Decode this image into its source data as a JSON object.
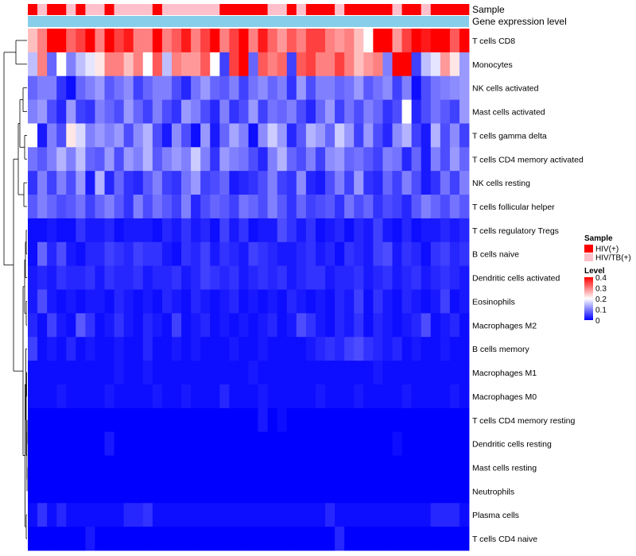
{
  "chart_data": {
    "type": "heatmap",
    "annotation_labels": {
      "sample": "Sample",
      "gene": "Gene expression level"
    },
    "rows": [
      "T cells CD8",
      "Monocytes",
      "NK cells activated",
      "Mast cells activated",
      "T cells gamma delta",
      "T cells CD4 memory activated",
      "NK cells resting",
      "T cells follicular helper",
      "T cells regulatory  Tregs",
      "B cells naive",
      "Dendritic cells activated",
      "Eosinophils",
      "Macrophages M2",
      "B cells memory",
      "Macrophages M1",
      "Macrophages M0",
      "T cells CD4 memory resting",
      "Dendritic cells resting",
      "Mast cells resting",
      "Neutrophils",
      "Plasma cells",
      "T cells CD4 naive"
    ],
    "n_columns": 46,
    "sample_groups": [
      "HIV(+)",
      "HIV/TB(+)",
      "HIV(+)",
      "HIV(+)",
      "HIV/TB(+)",
      "HIV(+)",
      "HIV/TB(+)",
      "HIV/TB(+)",
      "HIV(+)",
      "HIV/TB(+)",
      "HIV/TB(+)",
      "HIV/TB(+)",
      "HIV/TB(+)",
      "HIV(+)",
      "HIV/TB(+)",
      "HIV/TB(+)",
      "HIV/TB(+)",
      "HIV/TB(+)",
      "HIV/TB(+)",
      "HIV/TB(+)",
      "HIV(+)",
      "HIV(+)",
      "HIV(+)",
      "HIV(+)",
      "HIV(+)",
      "HIV/TB(+)",
      "HIV/TB(+)",
      "HIV(+)",
      "HIV/TB(+)",
      "HIV(+)",
      "HIV(+)",
      "HIV(+)",
      "HIV/TB(+)",
      "HIV(+)",
      "HIV(+)",
      "HIV(+)",
      "HIV(+)",
      "HIV(+)",
      "HIV/TB(+)",
      "HIV(+)",
      "HIV(+)",
      "HIV/TB(+)",
      "HIV(+)",
      "HIV(+)",
      "HIV(+)",
      "HIV(+)"
    ],
    "values": [
      [
        0.25,
        0.3,
        0.4,
        0.4,
        0.32,
        0.35,
        0.4,
        0.3,
        0.4,
        0.35,
        0.38,
        0.3,
        0.3,
        0.4,
        0.3,
        0.33,
        0.38,
        0.3,
        0.35,
        0.4,
        0.3,
        0.35,
        0.4,
        0.3,
        0.38,
        0.32,
        0.28,
        0.33,
        0.3,
        0.35,
        0.35,
        0.3,
        0.28,
        0.3,
        0.25,
        0.2,
        0.4,
        0.4,
        0.28,
        0.35,
        0.4,
        0.38,
        0.4,
        0.4,
        0.33,
        0.4
      ],
      [
        0.15,
        0.3,
        0.08,
        0.2,
        0.1,
        0.15,
        0.18,
        0.22,
        0.3,
        0.3,
        0.25,
        0.3,
        0.2,
        0.33,
        0.15,
        0.3,
        0.28,
        0.28,
        0.33,
        0.2,
        0.05,
        0.35,
        0.4,
        0.08,
        0.33,
        0.3,
        0.32,
        0.05,
        0.33,
        0.35,
        0.3,
        0.3,
        0.35,
        0.3,
        0.25,
        0.28,
        0.3,
        0.1,
        0.4,
        0.4,
        0.05,
        0.15,
        0.18,
        0.28,
        0.22,
        0.12
      ],
      [
        0.08,
        0.1,
        0.1,
        0.04,
        0.01,
        0.08,
        0.1,
        0.12,
        0.07,
        0.09,
        0.11,
        0.05,
        0.08,
        0.1,
        0.1,
        0.06,
        0.03,
        0.09,
        0.12,
        0.08,
        0.07,
        0.1,
        0.05,
        0.09,
        0.11,
        0.08,
        0.1,
        0.04,
        0.12,
        0.06,
        0.1,
        0.1,
        0.08,
        0.09,
        0.12,
        0.07,
        0.09,
        0.11,
        0.05,
        0.1,
        0.01,
        0.06,
        0.09,
        0.1,
        0.11,
        0.12
      ],
      [
        0.1,
        0.12,
        0.06,
        0.03,
        0.12,
        0.05,
        0.04,
        0.1,
        0.08,
        0.06,
        0.12,
        0.08,
        0.05,
        0.1,
        0.06,
        0.04,
        0.12,
        0.1,
        0.06,
        0.03,
        0.1,
        0.04,
        0.06,
        0.12,
        0.05,
        0.09,
        0.08,
        0.1,
        0.06,
        0.03,
        0.08,
        0.12,
        0.05,
        0.09,
        0.06,
        0.1,
        0.08,
        0.04,
        0.06,
        0.2,
        0.03,
        0.06,
        0.09,
        0.07,
        0.05,
        0.12
      ],
      [
        0.2,
        0.02,
        0.1,
        0.06,
        0.22,
        0.17,
        0.1,
        0.12,
        0.1,
        0.12,
        0.06,
        0.11,
        0.14,
        0.06,
        0.02,
        0.11,
        0.06,
        0.01,
        0.12,
        0.02,
        0.08,
        0.13,
        0.1,
        0.01,
        0.11,
        0.16,
        0.12,
        0.03,
        0.07,
        0.14,
        0.12,
        0.08,
        0.16,
        0.12,
        0.05,
        0.12,
        0.06,
        0.03,
        0.11,
        0.14,
        0.05,
        0.02,
        0.14,
        0.06,
        0.11,
        0.05
      ],
      [
        0.09,
        0.07,
        0.1,
        0.14,
        0.1,
        0.15,
        0.08,
        0.07,
        0.12,
        0.06,
        0.12,
        0.1,
        0.14,
        0.07,
        0.1,
        0.12,
        0.1,
        0.16,
        0.1,
        0.04,
        0.12,
        0.1,
        0.09,
        0.06,
        0.03,
        0.1,
        0.14,
        0.08,
        0.06,
        0.1,
        0.05,
        0.11,
        0.12,
        0.08,
        0.09,
        0.07,
        0.05,
        0.1,
        0.09,
        0.03,
        0.08,
        0.02,
        0.1,
        0.06,
        0.12,
        0.08
      ],
      [
        0.04,
        0.1,
        0.05,
        0.1,
        0.06,
        0.12,
        0.02,
        0.14,
        0.03,
        0.08,
        0.04,
        0.03,
        0.07,
        0.1,
        0.05,
        0.04,
        0.09,
        0.12,
        0.05,
        0.06,
        0.08,
        0.02,
        0.03,
        0.04,
        0.06,
        0.1,
        0.05,
        0.04,
        0.11,
        0.03,
        0.02,
        0.06,
        0.1,
        0.05,
        0.12,
        0.04,
        0.03,
        0.08,
        0.05,
        0.1,
        0.06,
        0.02,
        0.04,
        0.09,
        0.05,
        0.1
      ],
      [
        0.07,
        0.1,
        0.08,
        0.06,
        0.07,
        0.09,
        0.05,
        0.08,
        0.1,
        0.07,
        0.04,
        0.1,
        0.06,
        0.09,
        0.07,
        0.05,
        0.1,
        0.03,
        0.06,
        0.08,
        0.07,
        0.05,
        0.09,
        0.08,
        0.06,
        0.1,
        0.07,
        0.04,
        0.08,
        0.05,
        0.06,
        0.07,
        0.04,
        0.09,
        0.06,
        0.08,
        0.04,
        0.06,
        0.05,
        0.03,
        0.07,
        0.1,
        0.08,
        0.06,
        0.09,
        0.07
      ],
      [
        0.01,
        0.01,
        0.02,
        0.01,
        0.01,
        0.04,
        0.02,
        0.02,
        0.03,
        0.01,
        0.02,
        0.02,
        0.02,
        0.01,
        0.03,
        0.02,
        0.04,
        0.02,
        0.03,
        0.01,
        0.05,
        0.02,
        0.04,
        0.01,
        0.02,
        0.02,
        0.06,
        0.04,
        0.02,
        0.04,
        0.01,
        0.02,
        0.03,
        0.01,
        0.03,
        0.02,
        0.05,
        0.02,
        0.01,
        0.03,
        0.01,
        0.02,
        0.02,
        0.03,
        0.02,
        0.03
      ],
      [
        0.01,
        0.08,
        0.03,
        0.06,
        0.02,
        0.01,
        0.03,
        0.03,
        0.05,
        0.04,
        0.03,
        0.05,
        0.04,
        0.04,
        0.02,
        0.01,
        0.04,
        0.03,
        0.05,
        0.02,
        0.04,
        0.03,
        0.02,
        0.05,
        0.04,
        0.03,
        0.02,
        0.02,
        0.03,
        0.04,
        0.02,
        0.03,
        0.01,
        0.04,
        0.03,
        0.02,
        0.05,
        0.06,
        0.02,
        0.04,
        0.03,
        0.01,
        0.04,
        0.05,
        0.03,
        0.04
      ],
      [
        0.02,
        0.03,
        0.02,
        0.04,
        0.03,
        0.03,
        0.04,
        0.02,
        0.04,
        0.03,
        0.03,
        0.04,
        0.02,
        0.03,
        0.03,
        0.04,
        0.02,
        0.03,
        0.05,
        0.04,
        0.03,
        0.04,
        0.02,
        0.03,
        0.04,
        0.03,
        0.04,
        0.02,
        0.03,
        0.04,
        0.04,
        0.02,
        0.03,
        0.03,
        0.04,
        0.02,
        0.03,
        0.04,
        0.02,
        0.03,
        0.04,
        0.02,
        0.03,
        0.04,
        0.03,
        0.02
      ],
      [
        0.02,
        0.06,
        0.02,
        0.01,
        0.02,
        0.01,
        0.02,
        0.02,
        0.01,
        0.03,
        0.02,
        0.01,
        0.02,
        0.01,
        0.03,
        0.02,
        0.01,
        0.03,
        0.02,
        0.01,
        0.02,
        0.03,
        0.01,
        0.02,
        0.01,
        0.02,
        0.01,
        0.03,
        0.02,
        0.01,
        0.02,
        0.01,
        0.03,
        0.02,
        0.05,
        0.01,
        0.04,
        0.02,
        0.01,
        0.03,
        0.02,
        0.01,
        0.02,
        0.05,
        0.01,
        0.02
      ],
      [
        0.03,
        0.01,
        0.05,
        0.02,
        0.01,
        0.07,
        0.04,
        0.01,
        0.02,
        0.04,
        0.02,
        0.01,
        0.03,
        0.02,
        0.01,
        0.05,
        0.01,
        0.02,
        0.03,
        0.01,
        0.02,
        0.01,
        0.02,
        0.01,
        0.02,
        0.03,
        0.01,
        0.02,
        0.06,
        0.04,
        0.02,
        0.01,
        0.03,
        0.02,
        0.04,
        0.01,
        0.03,
        0.02,
        0.01,
        0.02,
        0.03,
        0.06,
        0.01,
        0.02,
        0.03,
        0.01
      ],
      [
        0.05,
        0.01,
        0.02,
        0.01,
        0.03,
        0.01,
        0.02,
        0.01,
        0.01,
        0.02,
        0.01,
        0.01,
        0.03,
        0.01,
        0.01,
        0.02,
        0.01,
        0.02,
        0.01,
        0.01,
        0.01,
        0.02,
        0.01,
        0.01,
        0.02,
        0.01,
        0.01,
        0.01,
        0.01,
        0.02,
        0.03,
        0.04,
        0.03,
        0.05,
        0.06,
        0.04,
        0.03,
        0.02,
        0.03,
        0.01,
        0.02,
        0.01,
        0.01,
        0.02,
        0.01,
        0.01
      ],
      [
        0.01,
        0.01,
        0.01,
        0.01,
        0.01,
        0.01,
        0.01,
        0.01,
        0.01,
        0.02,
        0.01,
        0.01,
        0.02,
        0.01,
        0.01,
        0.01,
        0.01,
        0.01,
        0.01,
        0.01,
        0.01,
        0.01,
        0.01,
        0.02,
        0.01,
        0.01,
        0.01,
        0.01,
        0.01,
        0.01,
        0.01,
        0.01,
        0.01,
        0.01,
        0.01,
        0.01,
        0.02,
        0.01,
        0.01,
        0.01,
        0.01,
        0.01,
        0.01,
        0.01,
        0.01,
        0.01
      ],
      [
        0.01,
        0.01,
        0.01,
        0.02,
        0.01,
        0.01,
        0.01,
        0.01,
        0.02,
        0.01,
        0.01,
        0.01,
        0.01,
        0.02,
        0.01,
        0.01,
        0.02,
        0.01,
        0.01,
        0.01,
        0.03,
        0.01,
        0.01,
        0.01,
        0.02,
        0.01,
        0.01,
        0.01,
        0.01,
        0.01,
        0.02,
        0.01,
        0.01,
        0.01,
        0.02,
        0.01,
        0.01,
        0.01,
        0.01,
        0.02,
        0.01,
        0.01,
        0.01,
        0.01,
        0.02,
        0.01
      ],
      [
        0.0,
        0.0,
        0.0,
        0.0,
        0.0,
        0.0,
        0.0,
        0.0,
        0.0,
        0.0,
        0.0,
        0.0,
        0.0,
        0.0,
        0.0,
        0.0,
        0.0,
        0.0,
        0.0,
        0.0,
        0.0,
        0.0,
        0.0,
        0.0,
        0.02,
        0.0,
        0.01,
        0.0,
        0.0,
        0.0,
        0.0,
        0.0,
        0.0,
        0.0,
        0.0,
        0.0,
        0.0,
        0.0,
        0.0,
        0.0,
        0.0,
        0.0,
        0.0,
        0.0,
        0.0,
        0.0
      ],
      [
        0.0,
        0.0,
        0.0,
        0.0,
        0.0,
        0.0,
        0.0,
        0.0,
        0.02,
        0.0,
        0.0,
        0.0,
        0.0,
        0.0,
        0.0,
        0.0,
        0.0,
        0.0,
        0.0,
        0.0,
        0.0,
        0.0,
        0.0,
        0.0,
        0.0,
        0.0,
        0.0,
        0.0,
        0.0,
        0.0,
        0.0,
        0.0,
        0.0,
        0.0,
        0.0,
        0.0,
        0.0,
        0.0,
        0.01,
        0.0,
        0.0,
        0.0,
        0.0,
        0.0,
        0.0,
        0.0
      ],
      [
        0.0,
        0.0,
        0.0,
        0.0,
        0.0,
        0.0,
        0.0,
        0.0,
        0.0,
        0.0,
        0.0,
        0.0,
        0.0,
        0.0,
        0.0,
        0.0,
        0.0,
        0.0,
        0.0,
        0.0,
        0.0,
        0.0,
        0.0,
        0.0,
        0.0,
        0.0,
        0.0,
        0.0,
        0.0,
        0.0,
        0.0,
        0.0,
        0.0,
        0.0,
        0.0,
        0.0,
        0.0,
        0.0,
        0.0,
        0.0,
        0.0,
        0.0,
        0.0,
        0.0,
        0.0,
        0.0
      ],
      [
        0.0,
        0.0,
        0.0,
        0.0,
        0.0,
        0.0,
        0.0,
        0.0,
        0.0,
        0.0,
        0.0,
        0.0,
        0.0,
        0.0,
        0.0,
        0.0,
        0.0,
        0.0,
        0.0,
        0.0,
        0.0,
        0.0,
        0.0,
        0.0,
        0.0,
        0.0,
        0.0,
        0.0,
        0.0,
        0.0,
        0.0,
        0.0,
        0.0,
        0.0,
        0.0,
        0.0,
        0.0,
        0.0,
        0.0,
        0.0,
        0.0,
        0.0,
        0.0,
        0.0,
        0.0,
        0.0
      ],
      [
        0.01,
        0.04,
        0.01,
        0.03,
        0.01,
        0.01,
        0.01,
        0.01,
        0.01,
        0.01,
        0.03,
        0.03,
        0.04,
        0.01,
        0.01,
        0.01,
        0.01,
        0.01,
        0.01,
        0.01,
        0.01,
        0.01,
        0.01,
        0.01,
        0.01,
        0.01,
        0.01,
        0.01,
        0.01,
        0.01,
        0.01,
        0.03,
        0.01,
        0.01,
        0.01,
        0.01,
        0.01,
        0.01,
        0.01,
        0.01,
        0.01,
        0.01,
        0.03,
        0.03,
        0.03,
        0.01
      ],
      [
        0.0,
        0.0,
        0.0,
        0.0,
        0.0,
        0.0,
        0.02,
        0.0,
        0.0,
        0.0,
        0.0,
        0.0,
        0.0,
        0.0,
        0.0,
        0.0,
        0.0,
        0.0,
        0.0,
        0.0,
        0.0,
        0.0,
        0.0,
        0.0,
        0.0,
        0.0,
        0.0,
        0.0,
        0.0,
        0.0,
        0.0,
        0.0,
        0.03,
        0.0,
        0.0,
        0.0,
        0.0,
        0.0,
        0.0,
        0.0,
        0.0,
        0.0,
        0.0,
        0.0,
        0.0,
        0.0
      ]
    ],
    "legend": {
      "sample_title": "Sample",
      "sample_entries": [
        {
          "label": "HIV(+)",
          "color": "#FF0000"
        },
        {
          "label": "HIV/TB(+)",
          "color": "#FFC0CB"
        }
      ],
      "level_title": "Level",
      "level_ticks": [
        "0.4",
        "0.3",
        "0.2",
        "0.1",
        "0"
      ],
      "level_tick_values": [
        0.4,
        0.3,
        0.2,
        0.1,
        0
      ],
      "level_range": [
        0,
        0.4
      ]
    },
    "colors": {
      "low": "#0000FF",
      "mid": "#FFFFFF",
      "high": "#FF0000",
      "gene_bar": "#87CEEB"
    }
  }
}
